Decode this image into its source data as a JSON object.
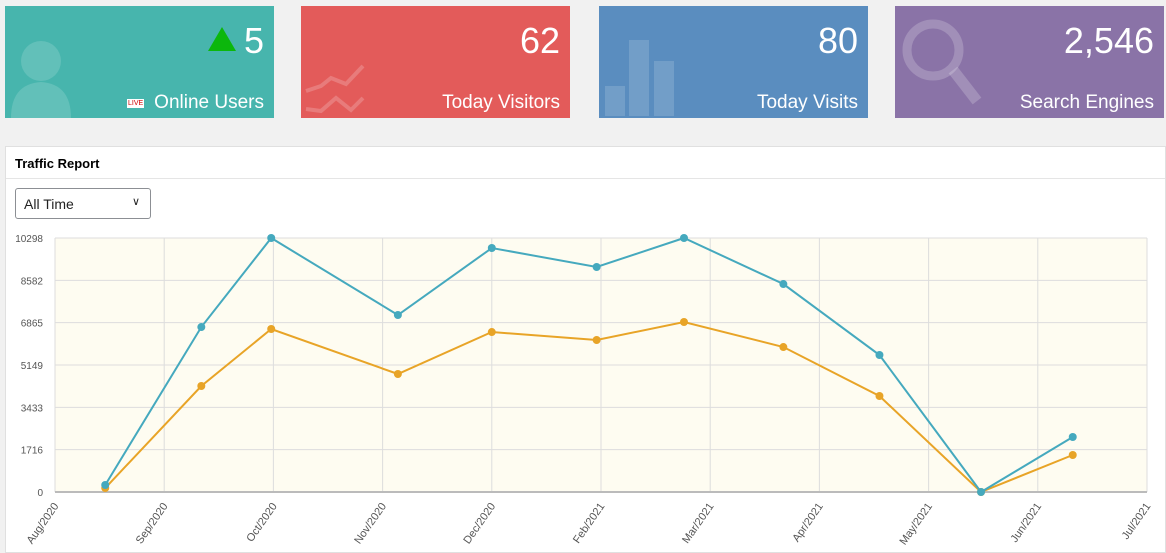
{
  "cards": [
    {
      "value": "5",
      "label": "Online Users",
      "color": "#47b5ad",
      "icon": "user-icon",
      "badge": "LIVE",
      "trend": "up-triangle-icon"
    },
    {
      "value": "62",
      "label": "Today Visitors",
      "color": "#e35b5a",
      "icon": "line-chart-icon"
    },
    {
      "value": "80",
      "label": "Today Visits",
      "color": "#5a8dbf",
      "icon": "bar-chart-icon"
    },
    {
      "value": "2,546",
      "label": "Search Engines",
      "color": "#8a73a7",
      "icon": "search-icon"
    }
  ],
  "panel": {
    "title": "Traffic Report",
    "range_select": "All Time"
  },
  "chart_data": {
    "type": "line",
    "xlim": [
      "2020-08-01",
      "2021-07-01"
    ],
    "x_ticks": [
      "Aug/2020",
      "Sep/2020",
      "Oct/2020",
      "Nov/2020",
      "Dec/2020",
      "Feb/2021",
      "Mar/2021",
      "Apr/2021",
      "May/2021",
      "Jun/2021",
      "Jul/2021"
    ],
    "y_ticks": [
      0,
      1716,
      3433,
      5149,
      6865,
      8582,
      10298
    ],
    "ylim": [
      0,
      10298
    ],
    "grid": true,
    "background": "#fefcf1",
    "series": [
      {
        "color": "#45a9be",
        "values": [
          284,
          6689,
          10298,
          7176,
          9892,
          9122,
          10298,
          8432,
          5554,
          0,
          2230
        ]
      },
      {
        "color": "#e8a427",
        "values": [
          162,
          4297,
          6608,
          4784,
          6486,
          6162,
          6892,
          5878,
          3892,
          0,
          1500
        ]
      }
    ],
    "point_positions_in_ticks": [
      0.46,
      1.34,
      1.98,
      3.14,
      4.0,
      4.96,
      5.76,
      6.67,
      7.55,
      8.48,
      9.32
    ]
  }
}
